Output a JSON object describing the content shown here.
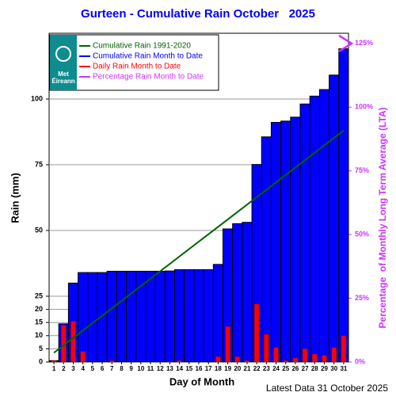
{
  "chart_data": {
    "type": "bar",
    "title": "Gurteen - Cumulative Rain October   2025",
    "x_label": "Day of Month",
    "y_label": "Rain (mm)",
    "y2_label": "Percentage  of Monthly Long Term Average (LTA)",
    "footer": "Latest Data 31 October 2025",
    "logo": [
      "Met",
      "Éireann"
    ],
    "categories": [
      "1",
      "2",
      "3",
      "4",
      "5",
      "6",
      "7",
      "8",
      "9",
      "10",
      "11",
      "12",
      "13",
      "14",
      "15",
      "16",
      "17",
      "18",
      "19",
      "20",
      "21",
      "22",
      "23",
      "24",
      "25",
      "26",
      "27",
      "28",
      "29",
      "30",
      "31"
    ],
    "series": [
      {
        "name": "Cumulative Rain 1991-2020",
        "color": "#006400",
        "type": "line",
        "x": [
          1,
          31
        ],
        "values": [
          3.5,
          88
        ]
      },
      {
        "name": "Cumulative Rain Month to Date",
        "color": "#0000ff",
        "type": "bar",
        "values": [
          0.5,
          14.5,
          30,
          34,
          34,
          34,
          34.5,
          34.5,
          34.5,
          34.5,
          34.5,
          34.5,
          34.6,
          35.1,
          35.1,
          35.1,
          35.1,
          37.1,
          50.6,
          52.6,
          53.1,
          75.1,
          85.6,
          91.1,
          91.6,
          93.1,
          98.1,
          101.1,
          103.6,
          109.1,
          119.1
        ]
      },
      {
        "name": "Daily Rain Month to Date",
        "color": "#ff0000",
        "type": "daily",
        "values": [
          0.5,
          14,
          15.5,
          4,
          0,
          0,
          0.5,
          0,
          0,
          0,
          0,
          0,
          0.1,
          0.5,
          0,
          0,
          0,
          2,
          13.5,
          2,
          0.5,
          22,
          10.5,
          5.5,
          0.5,
          1.5,
          5,
          3,
          2.5,
          5.5,
          10
        ]
      },
      {
        "name": "Percentage Rain Month to Date",
        "color": "#cc33ff",
        "type": "marker",
        "axis": "y2",
        "x": [
          31
        ],
        "values": [
          125
        ]
      }
    ],
    "ylim": [
      0,
      125
    ],
    "yticks": [
      0,
      5,
      10,
      15,
      20,
      25,
      50,
      75,
      100
    ],
    "y2lim": [
      0,
      129
    ],
    "y2ticks": [
      {
        "value": 0,
        "label": "0%"
      },
      {
        "value": 25,
        "label": "25%"
      },
      {
        "value": 50,
        "label": "50%"
      },
      {
        "value": 75,
        "label": "75%"
      },
      {
        "value": 100,
        "label": "100%"
      },
      {
        "value": 125,
        "label": "125%"
      }
    ],
    "grid": true,
    "legend": "upper left"
  }
}
